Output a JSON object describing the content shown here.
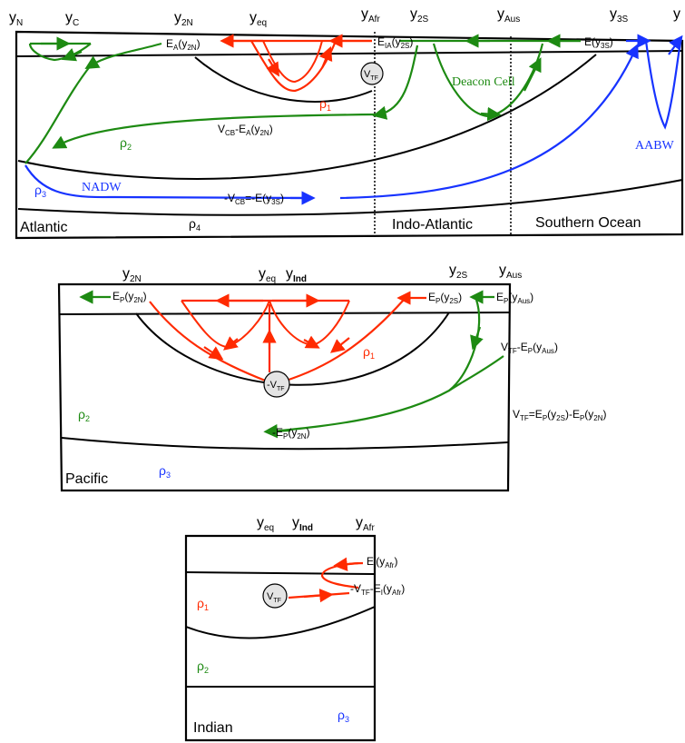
{
  "colors": {
    "red": "#ff2a00",
    "green": "#1d8a12",
    "blue": "#1733ff",
    "black": "#000000",
    "tf_fill": "#e4e4e4"
  },
  "top_panel": {
    "labels_top": {
      "yN_base": "y",
      "yN_sub": "N",
      "yC_base": "y",
      "yC_sub": "C",
      "y2N_base": "y",
      "y2N_sub": "2N",
      "yeq_base": "y",
      "yeq_sub": "eq",
      "yAfr_base": "y",
      "yAfr_sub": "Afr",
      "y2S_base": "y",
      "y2S_sub": "2S",
      "yAus_base": "y",
      "yAus_sub": "Aus",
      "y3S_base": "y",
      "y3S_sub": "3S",
      "yS_base": "y"
    },
    "flux": {
      "EA_main": "E",
      "EA_sub": "A",
      "EA_arg_open": "(y",
      "EA_arg_sub": "2N",
      "EA_arg_close": ")",
      "EIA_main": "E",
      "EIA_sub": "IA",
      "EIA_arg_open": "(y",
      "EIA_arg_sub": "2S",
      "EIA_arg_close": ")",
      "E3S_main": "E(y",
      "E3S_sub": "3S",
      "E3S_close": ")",
      "VCB_main": "V",
      "VCB_sub": "CB",
      "VCB_mid": "-E",
      "VCB_sub2": "A",
      "VCB_arg": "(y",
      "VCB_arg_sub": "2N",
      "VCB_close": ")",
      "NVCB_main": "-V",
      "NVCB_sub": "CB",
      "NVCB_mid": "=-E(y",
      "NVCB_arg_sub": "3S",
      "NVCB_close": ")"
    },
    "tf_main": "V",
    "tf_sub": "TF",
    "rho1": "ρ",
    "rho1_sub": "1",
    "rho2": "ρ",
    "rho2_sub": "2",
    "rho3": "ρ",
    "rho3_sub": "3",
    "rho4": "ρ",
    "rho4_sub": "4",
    "deacon_cell": "Deacon Cell",
    "nadw": "NADW",
    "aabw": "AABW",
    "region_atlantic": "Atlantic",
    "region_indo_atlantic": "Indo-Atlantic",
    "region_southern_ocean": "Southern Ocean"
  },
  "middle_panel": {
    "y2N_base": "y",
    "y2N_sub": "2N",
    "yeq_base": "y",
    "yeq_sub": "eq",
    "yInd_base": "y",
    "yInd_sub": "Ind",
    "y2S_base": "y",
    "y2S_sub": "2S",
    "yAus_base": "y",
    "yAus_sub": "Aus",
    "EP2N_main": "E",
    "EP2N_sub": "P",
    "EP2N_arg": "(y",
    "EP2N_arg_sub": "2N",
    "EP2N_close": ")",
    "EP2S_main": "E",
    "EP2S_sub": "P",
    "EP2S_arg": "(y",
    "EP2S_arg_sub": "2S",
    "EP2S_close": ")",
    "EPAus_main": "E",
    "EPAus_sub": "P",
    "EPAus_arg": "(y",
    "EPAus_arg_sub": "Aus",
    "EPAus_close": ")",
    "VTF_EP_main": "V",
    "VTF_EP_sub": "TF",
    "VTF_EP_mid": "-E",
    "VTF_EP_sub2": "P",
    "VTF_EP_arg": "(y",
    "VTF_EP_arg_sub": "Aus",
    "VTF_EP_close": ")",
    "NEP_main": "-E",
    "NEP_sub": "P",
    "NEP_arg": "(y",
    "NEP_arg_sub": "2N",
    "NEP_close": ")",
    "tf_main": "-V",
    "tf_sub": "TF",
    "rho1": "ρ",
    "rho1_sub": "1",
    "rho2": "ρ",
    "rho2_sub": "2",
    "rho3": "ρ",
    "rho3_sub": "3",
    "region": "Pacific",
    "eq_V": "V",
    "eq_V_sub": "TF",
    "eq_mid1": "=E",
    "eq_sub1": "P",
    "eq_arg1": "(y",
    "eq_arg1_sub": "2S",
    "eq_mid2": ")-E",
    "eq_sub2": "P",
    "eq_arg2": "(y",
    "eq_arg2_sub": "2N",
    "eq_close": ")"
  },
  "bottom_panel": {
    "yeq_base": "y",
    "yeq_sub": "eq",
    "yInd_base": "y",
    "yInd_sub": "Ind",
    "yAfr_base": "y",
    "yAfr_sub": "Afr",
    "EI_main": "E",
    "EI_sub": "I",
    "EI_arg": "(y",
    "EI_arg_sub": "Afr",
    "EI_close": ")",
    "NVTF_main": "-V",
    "NVTF_sub": "TF",
    "NVTF_mid": "-E",
    "NVTF_sub2": "I",
    "NVTF_arg": "(y",
    "NVTF_arg_sub": "Afr",
    "NVTF_close": ")",
    "tf_main": "V",
    "tf_sub": "TF",
    "rho1": "ρ",
    "rho1_sub": "1",
    "rho2": "ρ",
    "rho2_sub": "2",
    "rho3": "ρ",
    "rho3_sub": "3",
    "region": "Indian"
  }
}
